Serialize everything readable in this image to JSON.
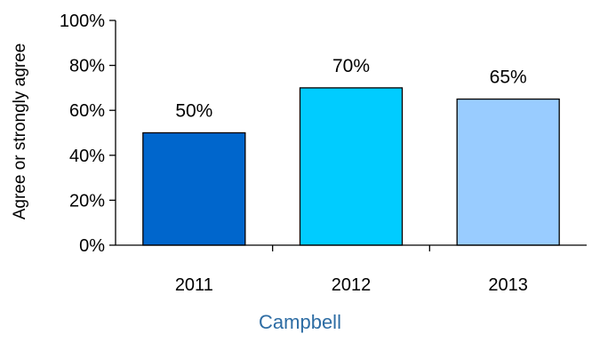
{
  "chart_data": {
    "type": "bar",
    "title": "Campbell",
    "ylabel": "Agree or strongly agree",
    "xlabel": "",
    "categories": [
      "2011",
      "2012",
      "2013"
    ],
    "values": [
      50,
      70,
      65
    ],
    "value_labels": [
      "50%",
      "70%",
      "65%"
    ],
    "bar_colors": [
      "#0066cc",
      "#00ccff",
      "#99ccff"
    ],
    "ylim": [
      0,
      100
    ],
    "yticks": [
      0,
      20,
      40,
      60,
      80,
      100
    ],
    "ytick_labels": [
      "0%",
      "20%",
      "40%",
      "60%",
      "80%",
      "100%"
    ],
    "grid": false,
    "legend": "none",
    "title_color": "#2e6da4"
  }
}
